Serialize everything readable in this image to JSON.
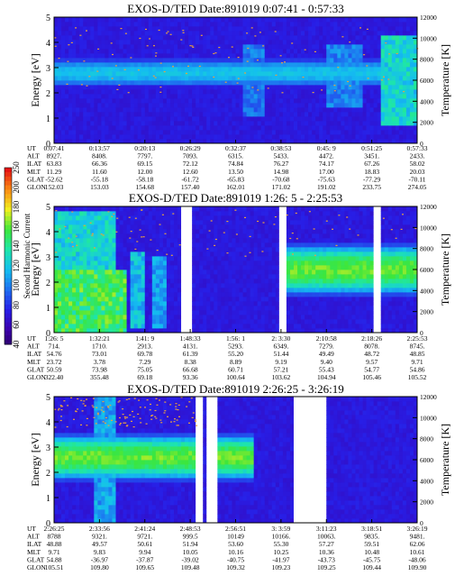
{
  "chart_data": [
    {
      "type": "heatmap",
      "title": "EXOS-D/TED   Date:891019  0:07:41 - 0:57:33",
      "ylabel": "Energy [eV]",
      "ylabel_right": "Temperature [K]",
      "ylim": [
        0,
        5
      ],
      "ylim_right": [
        0,
        12000
      ],
      "yticks": [
        "0",
        "1",
        "2",
        "3",
        "4",
        "5"
      ],
      "yticks_right": [
        "0",
        "2000",
        "4000",
        "6000",
        "8000",
        "10000",
        "12000"
      ],
      "gaps": [],
      "band_center": 2.8,
      "band_width": 0.6,
      "band_strength": 0.3,
      "features": [
        {
          "x": 0.55,
          "width": 0.03,
          "lo": 1.0,
          "hi": 4.0,
          "level": 0.38
        },
        {
          "x": 0.8,
          "width": 0.05,
          "lo": 1.5,
          "hi": 4.0,
          "level": 0.4
        },
        {
          "x": 0.95,
          "width": 0.05,
          "lo": 0.8,
          "hi": 4.2,
          "level": 0.55
        }
      ],
      "dots": {
        "count": 110,
        "ylo": 2.0,
        "yhi": 4.6
      },
      "ephemeris": {
        "labels": [
          "UT",
          "ALT",
          "ILAT",
          "MLT",
          "GLAT",
          "GLON"
        ],
        "columns": [
          [
            "0:07:41",
            "8927.",
            "63.83",
            "11.29",
            "-52.62",
            "152.03"
          ],
          [
            "0:13:57",
            "8408.",
            "66.36",
            "11.60",
            "-55.18",
            "153.03"
          ],
          [
            "0:20:13",
            "7797.",
            "69.15",
            "12.00",
            "-58.18",
            "154.68"
          ],
          [
            "0:26:29",
            "7093.",
            "72.12",
            "12.60",
            "-61.72",
            "157.40"
          ],
          [
            "0:32:37",
            "6315.",
            "74.84",
            "13.50",
            "-65.83",
            "162.01"
          ],
          [
            "0:38:53",
            "5433.",
            "76.27",
            "14.98",
            "-70.68",
            "171.02"
          ],
          [
            "0:45: 9",
            "4472.",
            "74.17",
            "17.00",
            "-75.63",
            "191.02"
          ],
          [
            "0:51:25",
            "3451.",
            "67.26",
            "18.83",
            "-77.29",
            "233.75"
          ],
          [
            "0:57:33",
            "2433.",
            "58.02",
            "20.03",
            "-70.11",
            "274.05"
          ]
        ]
      }
    },
    {
      "type": "heatmap",
      "title": "EXOS-D/TED   Date:891019  1:26: 5 - 2:25:53",
      "ylabel": "Energy [eV]",
      "ylabel_right": "Temperature [K]",
      "ylim": [
        0,
        5
      ],
      "ylim_right": [
        0,
        12000
      ],
      "yticks": [
        "0",
        "1",
        "2",
        "3",
        "4",
        "5"
      ],
      "yticks_right": [
        "0",
        "2000",
        "4000",
        "6000",
        "8000",
        "10000",
        "12000"
      ],
      "gaps": [
        [
          0.355,
          0.375
        ],
        [
          0.62,
          0.635
        ],
        [
          0.885,
          0.9
        ]
      ],
      "band_center": 2.5,
      "band_width": 1.1,
      "band_strength": 0.55,
      "band_start": 0.64,
      "features": [
        {
          "x": 0.0,
          "width": 0.2,
          "lo": 0.0,
          "hi": 2.5,
          "level": 0.7
        },
        {
          "x": 0.05,
          "width": 0.12,
          "lo": 0.0,
          "hi": 4.8,
          "level": 0.55
        },
        {
          "x": 0.23,
          "width": 0.02,
          "lo": 0.2,
          "hi": 3.2,
          "level": 0.5
        },
        {
          "x": 0.29,
          "width": 0.02,
          "lo": 0.2,
          "hi": 3.0,
          "level": 0.45
        }
      ],
      "dots": {
        "count": 90,
        "ylo": 3.0,
        "yhi": 4.9
      },
      "ephemeris": {
        "labels": [
          "UT",
          "ALT",
          "ILAT",
          "MLT",
          "GLAT",
          "GLON"
        ],
        "columns": [
          [
            "1:26: 5",
            "714.",
            "54.76",
            "23.72",
            "50.59",
            "322.40"
          ],
          [
            "1:32:21",
            "1710.",
            "73.01",
            "3.78",
            "73.98",
            "355.48"
          ],
          [
            "1:41: 9",
            "2913.",
            "69.78",
            "7.29",
            "75.05",
            "69.18"
          ],
          [
            "1:48:33",
            "4131.",
            "61.39",
            "8.38",
            "66.68",
            "93.36"
          ],
          [
            "1:56: 1",
            "5293.",
            "55.20",
            "8.89",
            "60.71",
            "100.64"
          ],
          [
            "2: 3:30",
            "6349.",
            "51.44",
            "9.19",
            "57.21",
            "103.62"
          ],
          [
            "2:10:58",
            "7279.",
            "49.49",
            "9.40",
            "55.43",
            "104.94"
          ],
          [
            "2:18:26",
            "8078.",
            "48.72",
            "9.57",
            "54.77",
            "105.46"
          ],
          [
            "2:25:53",
            "8745.",
            "48.85",
            "9.71",
            "54.86",
            "105.52"
          ]
        ]
      },
      "colorbar": {
        "label": "Second Harmonic Current",
        "ticks": [
          "40",
          "60",
          "80",
          "100",
          "120",
          "140",
          "160",
          "180",
          "200",
          "250"
        ]
      }
    },
    {
      "type": "heatmap",
      "title": "EXOS-D/TED   Date:891019  2:26:25 - 3:26:19",
      "ylabel": "Energy [eV]",
      "ylabel_right": "Temperature [K]",
      "ylim": [
        0,
        5
      ],
      "ylim_right": [
        0,
        12000
      ],
      "yticks": [
        "0",
        "1",
        "2",
        "3",
        "4",
        "5"
      ],
      "yticks_right": [
        "0",
        "2000",
        "4000",
        "6000",
        "8000",
        "10000",
        "12000"
      ],
      "gaps": [
        [
          0.39,
          0.405
        ],
        [
          0.425,
          0.445
        ],
        [
          0.665,
          0.745
        ]
      ],
      "band_center": 2.6,
      "band_width": 1.0,
      "band_strength": 0.55,
      "band_end": 0.39,
      "band2": {
        "start": 0.44,
        "end": 0.55
      },
      "features": [
        {
          "x": 0.145,
          "width": 0.03,
          "lo": 0.0,
          "hi": 5.0,
          "level": 0.45
        }
      ],
      "dots": {
        "count": 120,
        "ylo": 3.8,
        "yhi": 5.0,
        "xmax": 0.39
      },
      "ephemeris": {
        "labels": [
          "UT",
          "ALT",
          "ILAT",
          "MLT",
          "GLAT",
          "GLON"
        ],
        "columns": [
          [
            "2:26:25",
            "8788",
            "48.88",
            "9.71",
            "54.88",
            "105.51"
          ],
          [
            "2:33:56",
            "9321.",
            "49.57",
            "9.83",
            "-36.97",
            "109.80"
          ],
          [
            "2:41:24",
            "9721.",
            "50.61",
            "9.94",
            "-37.87",
            "109.65"
          ],
          [
            "2:48:53",
            "999.5",
            "51.94",
            "10.05",
            "-39.02",
            "109.48"
          ],
          [
            "2:56:51",
            "10149",
            "53.60",
            "10.16",
            "-40.75",
            "109.32"
          ],
          [
            "3: 3:59",
            "10166.",
            "55.30",
            "10.25",
            "-41.97",
            "109.23"
          ],
          [
            "3:11:23",
            "10063.",
            "57.27",
            "10.36",
            "-43.73",
            "109.25"
          ],
          [
            "3:18:51",
            "9835.",
            "59.51",
            "10.48",
            "-45.75",
            "109.44"
          ],
          [
            "3:26:19",
            "9481.",
            "62.06",
            "10.61",
            "-48.06",
            "109.90"
          ]
        ]
      }
    }
  ]
}
